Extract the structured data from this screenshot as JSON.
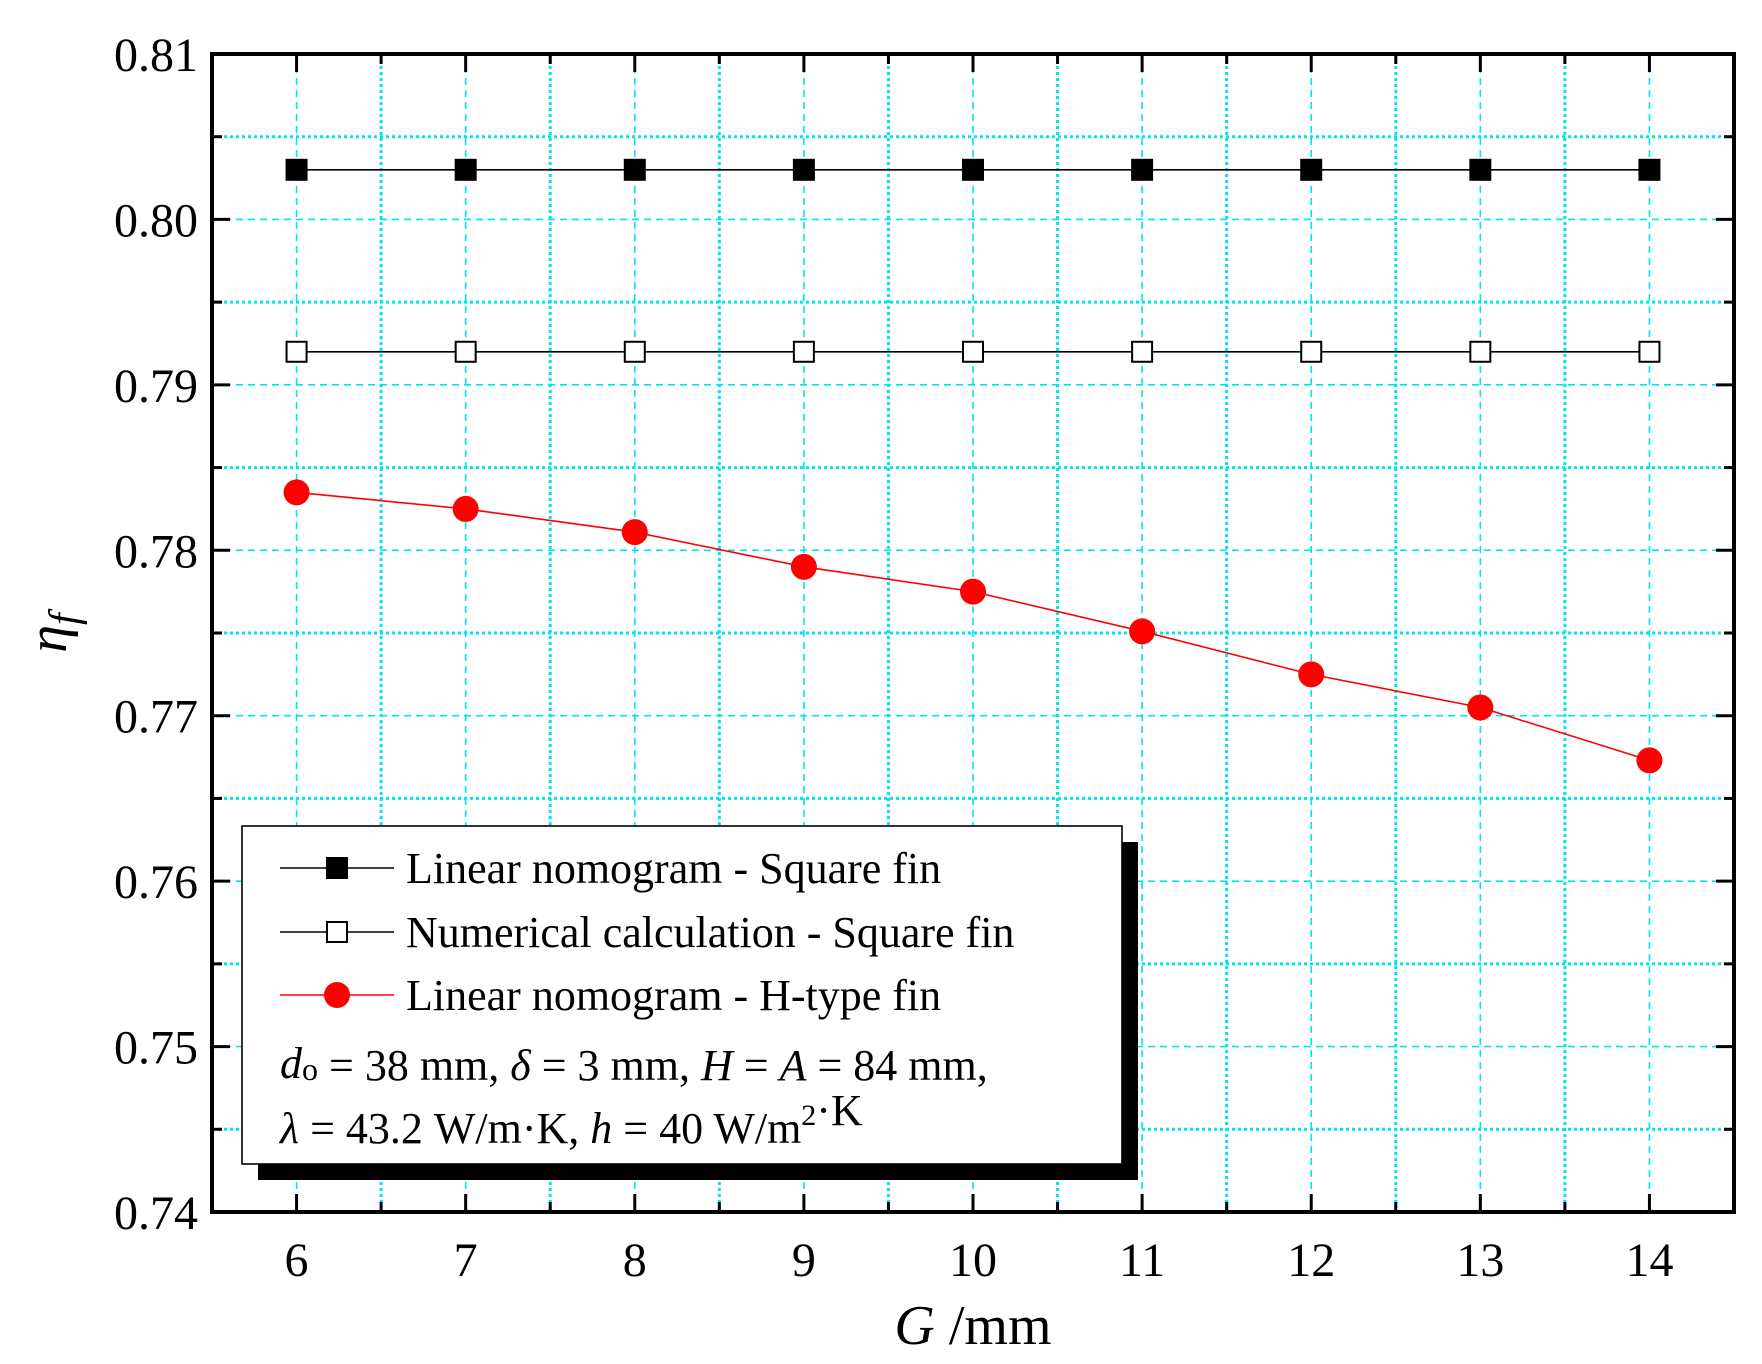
{
  "chart_data": {
    "type": "line",
    "x": [
      6,
      7,
      8,
      9,
      10,
      11,
      12,
      13,
      14
    ],
    "xlabel_var": "G",
    "xlabel_unit": " /mm",
    "ylabel_main": "η",
    "ylabel_sub": "f",
    "xlim": [
      5.5,
      14.5
    ],
    "ylim": [
      0.74,
      0.81
    ],
    "xticks": [
      6,
      7,
      8,
      9,
      10,
      11,
      12,
      13,
      14
    ],
    "xtick_labels": [
      "6",
      "7",
      "8",
      "9",
      "10",
      "11",
      "12",
      "13",
      "14"
    ],
    "yticks": [
      0.74,
      0.75,
      0.76,
      0.77,
      0.78,
      0.79,
      0.8,
      0.81
    ],
    "ytick_labels": [
      "0.74",
      "0.75",
      "0.76",
      "0.77",
      "0.78",
      "0.79",
      "0.80",
      "0.81"
    ],
    "grid": true,
    "grid_color": "#00e5ee",
    "series": [
      {
        "name": "Linear nomogram - Square fin",
        "marker": "square-filled",
        "color": "#000000",
        "values": [
          0.803,
          0.803,
          0.803,
          0.803,
          0.803,
          0.803,
          0.803,
          0.803,
          0.803
        ]
      },
      {
        "name": "Numerical calculation - Square fin",
        "marker": "square-open",
        "color": "#000000",
        "values": [
          0.792,
          0.792,
          0.792,
          0.792,
          0.792,
          0.792,
          0.792,
          0.792,
          0.792
        ]
      },
      {
        "name": "Linear nomogram - H-type fin",
        "marker": "circle-filled",
        "color": "#ff0000",
        "values": [
          0.7835,
          0.7825,
          0.7811,
          0.779,
          0.7775,
          0.7751,
          0.7725,
          0.7705,
          0.7673
        ]
      }
    ],
    "legend_position": "bottom-left",
    "annotation": {
      "line1": [
        {
          "t": "d",
          "style": "italic"
        },
        {
          "t": "o",
          "style": "sub"
        },
        {
          "t": " = 38 mm, ",
          "style": "normal"
        },
        {
          "t": "δ",
          "style": "italic"
        },
        {
          "t": " = 3 mm, ",
          "style": "normal"
        },
        {
          "t": "H",
          "style": "italic"
        },
        {
          "t": " = ",
          "style": "normal"
        },
        {
          "t": "A",
          "style": "italic"
        },
        {
          "t": " = 84 mm,",
          "style": "normal"
        }
      ],
      "line2": [
        {
          "t": "λ",
          "style": "italic"
        },
        {
          "t": " = 43.2 W/m·K, ",
          "style": "normal"
        },
        {
          "t": "h",
          "style": "italic"
        },
        {
          "t": " = 40 W/m",
          "style": "normal"
        },
        {
          "t": "2",
          "style": "sup"
        },
        {
          "t": "·K",
          "style": "normal"
        }
      ]
    }
  }
}
